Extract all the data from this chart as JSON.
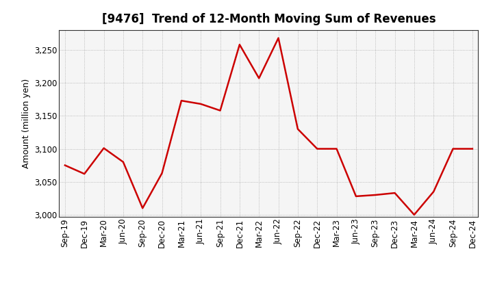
{
  "title": "[9476]  Trend of 12-Month Moving Sum of Revenues",
  "ylabel": "Amount (million yen)",
  "x_labels": [
    "Sep-19",
    "Dec-19",
    "Mar-20",
    "Jun-20",
    "Sep-20",
    "Dec-20",
    "Mar-21",
    "Jun-21",
    "Sep-21",
    "Dec-21",
    "Mar-22",
    "Jun-22",
    "Sep-22",
    "Dec-22",
    "Mar-23",
    "Jun-23",
    "Sep-23",
    "Dec-23",
    "Mar-24",
    "Jun-24",
    "Sep-24",
    "Dec-24"
  ],
  "values": [
    3075,
    3062,
    3101,
    3080,
    3010,
    3063,
    3173,
    3168,
    3158,
    3258,
    3207,
    3268,
    3130,
    3100,
    3100,
    3028,
    3030,
    3033,
    3000,
    3035,
    3100,
    3100
  ],
  "line_color": "#cc0000",
  "line_width": 1.8,
  "ylim": [
    2997,
    3280
  ],
  "yticks": [
    3000,
    3050,
    3100,
    3150,
    3200,
    3250
  ],
  "background_color": "#ffffff",
  "plot_bg_color": "#f5f5f5",
  "grid_color": "#aaaaaa",
  "grid_linestyle": "dotted",
  "title_fontsize": 12,
  "label_fontsize": 9,
  "tick_fontsize": 8.5
}
